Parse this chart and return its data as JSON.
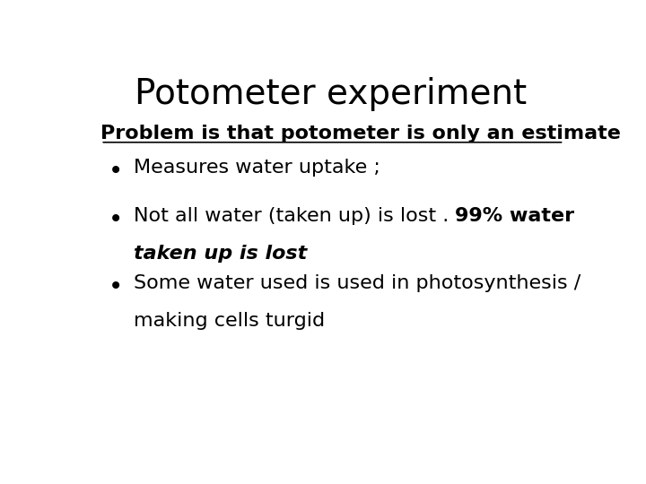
{
  "title": "Potometer experiment",
  "title_fontsize": 28,
  "subtitle": "Problem is that potometer is only an estimate",
  "subtitle_fontsize": 16,
  "bullet1": "Measures water uptake ;",
  "bullet2_normal": "Not all water (taken up) is lost . ",
  "bullet2_bold": "99% water",
  "bullet2_bold2": "taken up is lost",
  "bullet3_line1": "Some water used is used in photosynthesis /",
  "bullet3_line2": "making cells turgid",
  "bullet_fontsize": 16,
  "background_color": "#ffffff",
  "text_color": "#000000"
}
